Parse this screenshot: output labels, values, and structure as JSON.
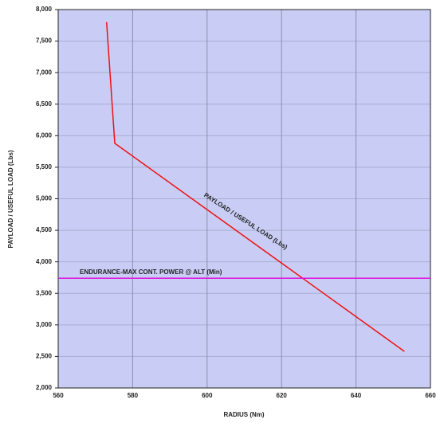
{
  "chart_data": {
    "type": "line",
    "x_label": "RADIUS (Nm)",
    "y_label": "PAYLOAD / USEFUL LOAD (Lbs)",
    "xlim": [
      560,
      660
    ],
    "xticks": [
      560,
      580,
      600,
      620,
      640,
      660
    ],
    "ylim": [
      2000,
      8000
    ],
    "yticks": [
      {
        "value": 2000,
        "label": "2,000"
      },
      {
        "value": 2500,
        "label": "2,500"
      },
      {
        "value": 3000,
        "label": "3,000"
      },
      {
        "value": 3500,
        "label": "3,500"
      },
      {
        "value": 4000,
        "label": "4,000"
      },
      {
        "value": 4500,
        "label": "4,500"
      },
      {
        "value": 5000,
        "label": "5,000"
      },
      {
        "value": 5500,
        "label": "5,500"
      },
      {
        "value": 6000,
        "label": "6,000"
      },
      {
        "value": 6500,
        "label": "6,500"
      },
      {
        "value": 7000,
        "label": "7,000"
      },
      {
        "value": 7500,
        "label": "7,500"
      },
      {
        "value": 8000,
        "label": "8,000"
      }
    ],
    "grid": true,
    "series": [
      {
        "name": "PAYLOAD / USEFUL LOAD (Lbs)",
        "color": "#ee1111",
        "x": [
          573,
          575.2,
          653
        ],
        "values": [
          7800,
          5880,
          2580
        ]
      },
      {
        "name": "ENDURANCE-MAX CONT. POWER @ ALT (Min)",
        "color": "#dd11dd",
        "x": [
          560,
          660
        ],
        "values": [
          3740,
          3740
        ]
      }
    ]
  }
}
